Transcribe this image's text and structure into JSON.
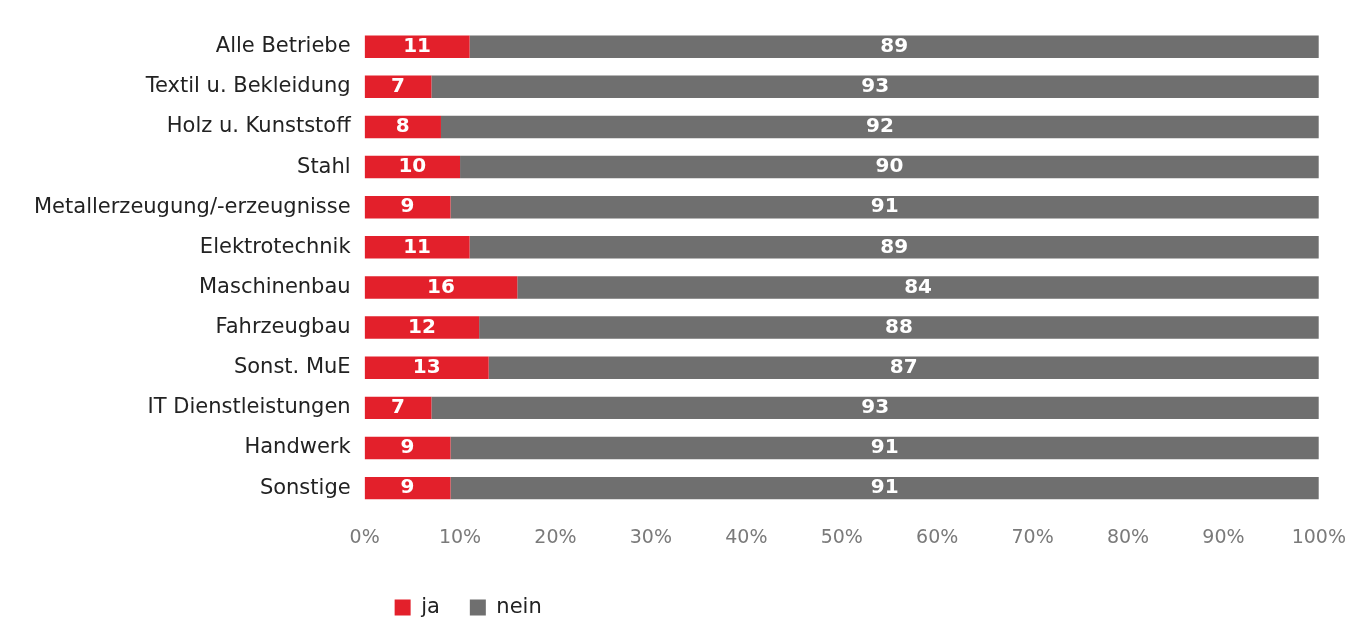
{
  "chart_data": {
    "type": "bar",
    "orientation": "horizontal",
    "stacked": true,
    "categories": [
      "Alle Betriebe",
      "Textil u. Bekleidung",
      "Holz u. Kunststoff",
      "Stahl",
      "Metallerzeugung/-erzeugnisse",
      "Elektrotechnik",
      "Maschinenbau",
      "Fahrzeugbau",
      "Sonst. MuE",
      "IT Dienstleistungen",
      "Handwerk",
      "Sonstige"
    ],
    "series": [
      {
        "name": "ja",
        "color": "#e3202b",
        "values": [
          11,
          7,
          8,
          10,
          9,
          11,
          16,
          12,
          13,
          7,
          9,
          9
        ]
      },
      {
        "name": "nein",
        "color": "#6f6f6f",
        "values": [
          89,
          93,
          92,
          90,
          91,
          89,
          84,
          88,
          87,
          93,
          91,
          91
        ]
      }
    ],
    "xlim": [
      0,
      100
    ],
    "xticks": [
      {
        "value": 0,
        "label": "0%"
      },
      {
        "value": 10,
        "label": "10%"
      },
      {
        "value": 20,
        "label": "20%"
      },
      {
        "value": 30,
        "label": "30%"
      },
      {
        "value": 40,
        "label": "40%"
      },
      {
        "value": 50,
        "label": "50%"
      },
      {
        "value": 60,
        "label": "60%"
      },
      {
        "value": 70,
        "label": "70%"
      },
      {
        "value": 80,
        "label": "80%"
      },
      {
        "value": 90,
        "label": "90%"
      },
      {
        "value": 100,
        "label": "100%"
      }
    ],
    "grid": false,
    "legend": "bottom left",
    "data_labels": true
  }
}
